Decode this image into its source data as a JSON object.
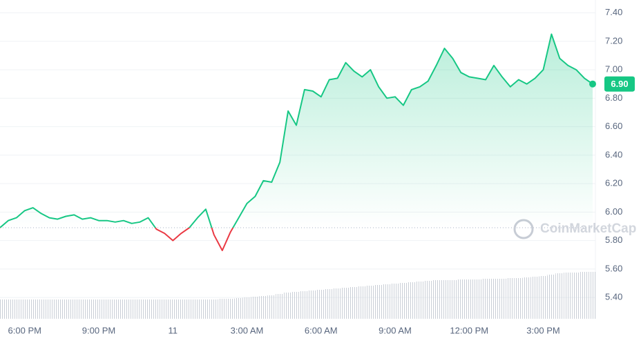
{
  "chart_data": {
    "type": "line",
    "categories": [
      null,
      null,
      null,
      "6:00 PM",
      null,
      null,
      null,
      null,
      null,
      null,
      null,
      null,
      "9:00 PM",
      null,
      null,
      null,
      null,
      null,
      null,
      null,
      null,
      "11",
      null,
      null,
      null,
      null,
      null,
      null,
      null,
      null,
      "3:00 AM",
      null,
      null,
      null,
      null,
      null,
      null,
      null,
      null,
      "6:00 AM",
      null,
      null,
      null,
      null,
      null,
      null,
      null,
      null,
      "9:00 AM",
      null,
      null,
      null,
      null,
      null,
      null,
      null,
      null,
      "12:00 PM",
      null,
      null,
      null,
      null,
      null,
      null,
      null,
      null,
      "3:00 PM",
      null,
      null,
      null,
      null,
      null,
      null
    ],
    "series": [
      {
        "name": "Price",
        "values": [
          5.89,
          5.94,
          5.96,
          6.01,
          6.03,
          5.99,
          5.96,
          5.95,
          5.97,
          5.98,
          5.95,
          5.96,
          5.94,
          5.94,
          5.93,
          5.94,
          5.92,
          5.93,
          5.96,
          5.88,
          5.85,
          5.8,
          5.85,
          5.89,
          5.96,
          6.02,
          5.84,
          5.73,
          5.86,
          5.96,
          6.06,
          6.11,
          6.22,
          6.21,
          6.35,
          6.71,
          6.61,
          6.86,
          6.85,
          6.81,
          6.93,
          6.94,
          7.05,
          6.99,
          6.95,
          7.0,
          6.88,
          6.8,
          6.81,
          6.75,
          6.86,
          6.88,
          6.92,
          7.03,
          7.15,
          7.08,
          6.98,
          6.95,
          6.94,
          6.93,
          7.03,
          6.95,
          6.88,
          6.93,
          6.9,
          6.94,
          7.0,
          7.25,
          7.08,
          7.03,
          7.0,
          6.94,
          6.9
        ]
      }
    ],
    "volume": [
      28,
      28,
      28,
      28,
      28,
      28,
      28,
      28,
      28,
      28,
      28,
      28,
      28,
      28,
      28,
      28,
      28,
      28,
      28,
      28,
      28,
      28,
      28,
      28,
      28,
      28,
      28,
      29,
      29,
      30,
      31,
      32,
      33,
      34,
      36,
      38,
      39,
      40,
      41,
      42,
      43,
      44,
      45,
      46,
      47,
      48,
      49,
      50,
      51,
      52,
      53,
      54,
      55,
      56,
      56,
      56,
      57,
      57,
      57,
      58,
      58,
      58,
      59,
      59,
      60,
      61,
      62,
      64,
      66,
      67,
      67,
      68,
      68
    ],
    "up_color": "#16c784",
    "down_color": "#ea3943",
    "baseline": 5.89,
    "current_price": {
      "value": 6.9,
      "label": "6.90"
    },
    "watermark": "CoinMarketCap",
    "ylim": [
      5.25,
      7.49
    ],
    "yticks": [
      {
        "value": 5.4,
        "label": "5.40"
      },
      {
        "value": 5.6,
        "label": "5.60"
      },
      {
        "value": 5.8,
        "label": "5.80"
      },
      {
        "value": 6.0,
        "label": "6.00"
      },
      {
        "value": 6.2,
        "label": "6.20"
      },
      {
        "value": 6.4,
        "label": "6.40"
      },
      {
        "value": 6.6,
        "label": "6.60"
      },
      {
        "value": 6.8,
        "label": "6.80"
      },
      {
        "value": 7.0,
        "label": "7.00"
      },
      {
        "value": 7.2,
        "label": "7.20"
      },
      {
        "value": 7.4,
        "label": "7.40"
      }
    ],
    "grid": true
  }
}
